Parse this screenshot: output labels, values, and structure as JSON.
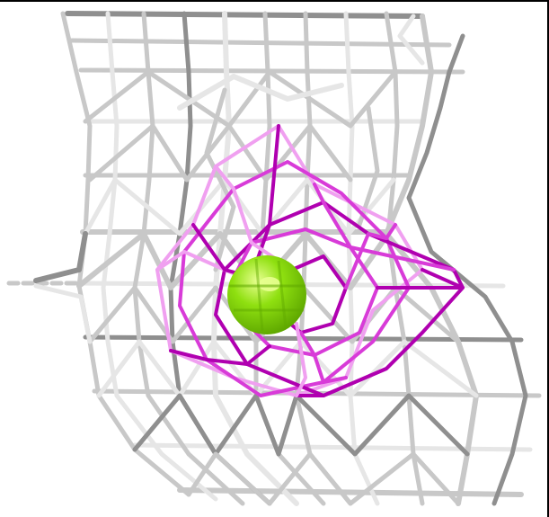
{
  "scene": {
    "background_color": "#ffffff",
    "frame_color": "#000000",
    "outer_mesh": {
      "label": "",
      "color": "#c8c8c8",
      "shade_color": "#8f8f8f",
      "highlight_color": "#e6e6e6"
    },
    "inner_mesh": {
      "label": "",
      "color": "#d83bd8",
      "light_color": "#f0a0f0",
      "dark_color": "#b000b0"
    },
    "ligand_sphere": {
      "label": "",
      "color": "#8fe010",
      "highlight_color": "#e8ff90",
      "shade_color": "#5fa800"
    }
  }
}
